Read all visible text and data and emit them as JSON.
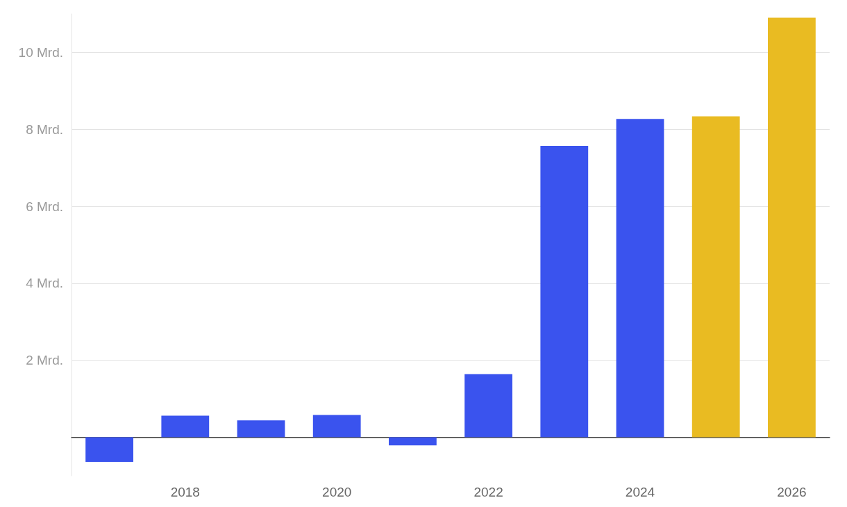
{
  "chart_data": {
    "type": "bar",
    "categories": [
      null,
      "2018",
      null,
      "2020",
      null,
      "2022",
      null,
      "2024",
      null,
      "2026"
    ],
    "values": [
      -0.64,
      0.56,
      0.44,
      0.58,
      -0.21,
      1.64,
      7.57,
      8.27,
      8.34,
      10.9
    ],
    "colors": [
      "#3a53ee",
      "#3a53ee",
      "#3a53ee",
      "#3a53ee",
      "#3a53ee",
      "#3a53ee",
      "#3a53ee",
      "#3a53ee",
      "#e9bb22",
      "#e9bb22"
    ],
    "ylim": [
      -1,
      11
    ],
    "yticks": [
      {
        "value": 0,
        "label": null
      },
      {
        "value": 2,
        "label": "2 Mrd."
      },
      {
        "value": 4,
        "label": "4 Mrd."
      },
      {
        "value": 6,
        "label": "6 Mrd."
      },
      {
        "value": 8,
        "label": "8 Mrd."
      },
      {
        "value": 10,
        "label": "10 Mrd."
      }
    ],
    "grid": "y"
  }
}
